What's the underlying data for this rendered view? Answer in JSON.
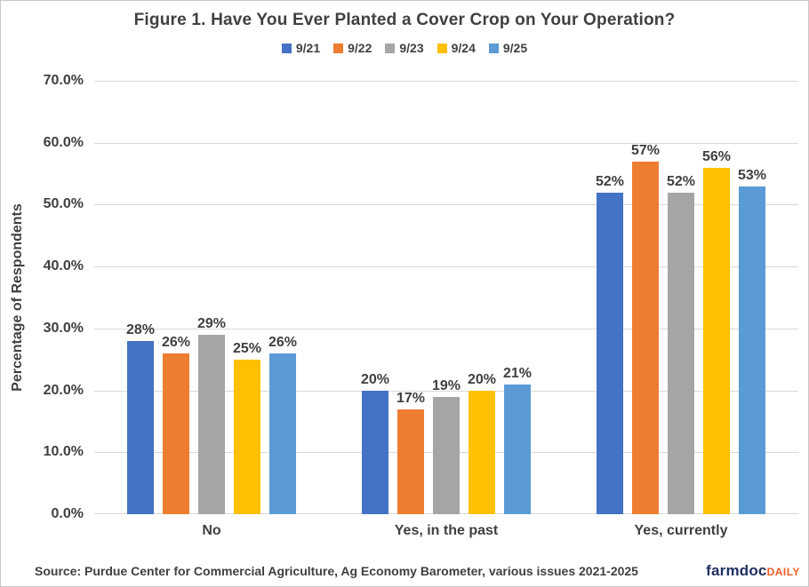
{
  "title": "Figure 1. Have You Ever Planted a Cover Crop on Your Operation?",
  "chart_data": {
    "type": "bar",
    "title": "Figure 1. Have You Ever Planted a Cover Crop on Your Operation?",
    "categories": [
      "No",
      "Yes, in the past",
      "Yes, currently"
    ],
    "series": [
      {
        "name": "9/21",
        "color": "#4472C4",
        "values": [
          28,
          20,
          52
        ],
        "labels": [
          "28%",
          "20%",
          "52%"
        ]
      },
      {
        "name": "9/22",
        "color": "#ED7D31",
        "values": [
          26,
          17,
          57
        ],
        "labels": [
          "26%",
          "17%",
          "57%"
        ]
      },
      {
        "name": "9/23",
        "color": "#A5A5A5",
        "values": [
          29,
          19,
          52
        ],
        "labels": [
          "29%",
          "19%",
          "52%"
        ]
      },
      {
        "name": "9/24",
        "color": "#FFC000",
        "values": [
          25,
          20,
          56
        ],
        "labels": [
          "25%",
          "20%",
          "56%"
        ]
      },
      {
        "name": "9/25",
        "color": "#5B9BD5",
        "values": [
          26,
          21,
          53
        ],
        "labels": [
          "26%",
          "21%",
          "53%"
        ]
      }
    ],
    "xlabel": "",
    "ylabel": "Percentage of Respondents",
    "ylim": [
      0,
      70
    ],
    "ytick_step": 10,
    "yticks": [
      "0.0%",
      "10.0%",
      "20.0%",
      "30.0%",
      "40.0%",
      "50.0%",
      "60.0%",
      "70.0%"
    ],
    "grid": true,
    "legend_position": "top"
  },
  "footer": {
    "source": "Source:  Purdue Center for Commercial Agriculture, Ag Economy Barometer, various issues 2021-2025",
    "logo_main": "farmdoc",
    "logo_daily": "DAILY"
  },
  "colors": {
    "text": "#404040",
    "gridline": "#D9D9D9",
    "logo_navy": "#1F3161",
    "logo_orange": "#F15C22"
  }
}
